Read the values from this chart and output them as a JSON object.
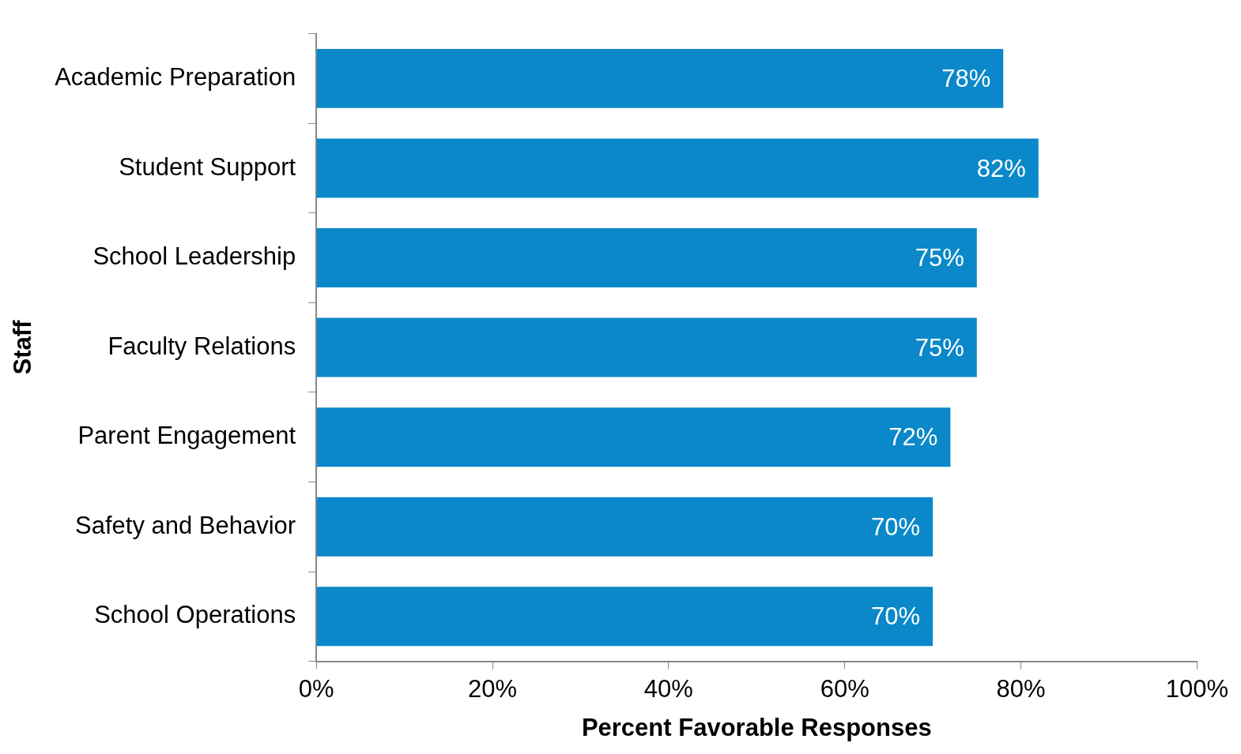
{
  "chart_data": {
    "type": "bar",
    "orientation": "horizontal",
    "xlabel": "Percent Favorable Responses",
    "ylabel": "Staff",
    "categories": [
      "Academic Preparation",
      "Student Support",
      "School Leadership",
      "Faculty Relations",
      "Parent Engagement",
      "Safety and Behavior",
      "School Operations"
    ],
    "values": [
      78,
      82,
      75,
      75,
      72,
      70,
      70
    ],
    "value_labels": [
      "78%",
      "82%",
      "75%",
      "75%",
      "72%",
      "70%",
      "70%"
    ],
    "color": "#0a88c9",
    "xlim": [
      0,
      100
    ],
    "xticks": [
      {
        "value": 0,
        "label": "0%"
      },
      {
        "value": 20,
        "label": "20%"
      },
      {
        "value": 40,
        "label": "40%"
      },
      {
        "value": 60,
        "label": "60%"
      },
      {
        "value": 80,
        "label": "80%"
      },
      {
        "value": 100,
        "label": "100%"
      }
    ],
    "grid": false,
    "legend": false
  }
}
